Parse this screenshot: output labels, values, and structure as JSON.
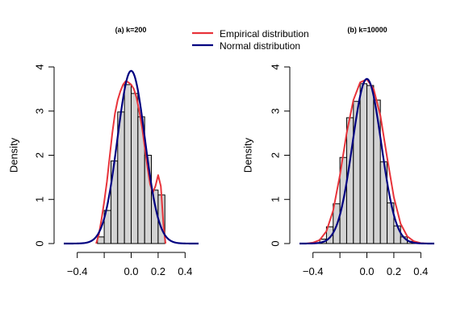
{
  "legend": {
    "items": [
      {
        "label": "Empirical distribution",
        "color": "#e8333a"
      },
      {
        "label": "Normal distribution",
        "color": "#000080"
      }
    ]
  },
  "colors": {
    "bar_fill": "#d3d3d3",
    "bar_stroke": "#000000",
    "empirical": "#e8333a",
    "normal": "#000080"
  },
  "chart_data": [
    {
      "type": "histogram",
      "title": "(a) k=200",
      "xlabel": "",
      "ylabel": "Density",
      "xlim": [
        -0.5,
        0.5
      ],
      "ylim": [
        0,
        4
      ],
      "x_ticks": [
        -0.4,
        -0.2,
        0.0,
        0.2,
        0.4
      ],
      "x_tick_labels": [
        "−0.4",
        "",
        "0.0",
        "0.2",
        "0.4"
      ],
      "y_ticks": [
        0,
        1,
        2,
        3,
        4
      ],
      "y_tick_labels": [
        "0",
        "1",
        "2",
        "3",
        "4"
      ],
      "bins": [
        {
          "x0": -0.25,
          "x1": -0.2,
          "density": 0.15
        },
        {
          "x0": -0.2,
          "x1": -0.15,
          "density": 0.75
        },
        {
          "x0": -0.15,
          "x1": -0.1,
          "density": 1.87
        },
        {
          "x0": -0.1,
          "x1": -0.05,
          "density": 2.98
        },
        {
          "x0": -0.05,
          "x1": 0.0,
          "density": 3.6
        },
        {
          "x0": 0.0,
          "x1": 0.05,
          "density": 3.4
        },
        {
          "x0": 0.05,
          "x1": 0.1,
          "density": 2.87
        },
        {
          "x0": 0.1,
          "x1": 0.15,
          "density": 2.0
        },
        {
          "x0": 0.15,
          "x1": 0.2,
          "density": 1.21
        },
        {
          "x0": 0.2,
          "x1": 0.25,
          "density": 1.1
        }
      ],
      "series": [
        {
          "name": "Empirical distribution",
          "x": [
            -0.26,
            -0.24,
            -0.22,
            -0.2,
            -0.18,
            -0.16,
            -0.14,
            -0.12,
            -0.1,
            -0.08,
            -0.06,
            -0.04,
            -0.02,
            0.0,
            0.02,
            0.04,
            0.06,
            0.08,
            0.1,
            0.12,
            0.14,
            0.16,
            0.18,
            0.2,
            0.22,
            0.24,
            0.255
          ],
          "y": [
            0.0,
            0.2,
            0.55,
            0.95,
            1.4,
            1.95,
            2.5,
            2.95,
            3.25,
            3.45,
            3.6,
            3.68,
            3.65,
            3.6,
            3.5,
            3.3,
            3.0,
            2.65,
            2.2,
            1.75,
            1.35,
            1.15,
            1.3,
            1.55,
            1.3,
            0.4,
            0.0
          ]
        },
        {
          "name": "Normal distribution",
          "mean": 0.0,
          "sd": 0.102,
          "x_range": [
            -0.5,
            0.5
          ]
        }
      ]
    },
    {
      "type": "histogram",
      "title": "(b) k=10000",
      "xlabel": "",
      "ylabel": "Density",
      "xlim": [
        -0.5,
        0.5
      ],
      "ylim": [
        0,
        4
      ],
      "x_ticks": [
        -0.4,
        -0.2,
        0.0,
        0.2,
        0.4
      ],
      "x_tick_labels": [
        "−0.4",
        "",
        "0.0",
        "0.2",
        "0.4"
      ],
      "y_ticks": [
        0,
        1,
        2,
        3,
        4
      ],
      "y_tick_labels": [
        "0",
        "1",
        "2",
        "3",
        "4"
      ],
      "bins": [
        {
          "x0": -0.4,
          "x1": -0.35,
          "density": 0.02
        },
        {
          "x0": -0.35,
          "x1": -0.3,
          "density": 0.1
        },
        {
          "x0": -0.3,
          "x1": -0.25,
          "density": 0.38
        },
        {
          "x0": -0.25,
          "x1": -0.2,
          "density": 0.9
        },
        {
          "x0": -0.2,
          "x1": -0.15,
          "density": 1.95
        },
        {
          "x0": -0.15,
          "x1": -0.1,
          "density": 2.85
        },
        {
          "x0": -0.1,
          "x1": -0.05,
          "density": 3.22
        },
        {
          "x0": -0.05,
          "x1": 0.0,
          "density": 3.62
        },
        {
          "x0": 0.0,
          "x1": 0.05,
          "density": 3.58
        },
        {
          "x0": 0.05,
          "x1": 0.1,
          "density": 3.25
        },
        {
          "x0": 0.1,
          "x1": 0.15,
          "density": 1.85
        },
        {
          "x0": 0.15,
          "x1": 0.2,
          "density": 0.92
        },
        {
          "x0": 0.2,
          "x1": 0.25,
          "density": 0.4
        },
        {
          "x0": 0.25,
          "x1": 0.3,
          "density": 0.15
        },
        {
          "x0": 0.3,
          "x1": 0.35,
          "density": 0.05
        },
        {
          "x0": 0.35,
          "x1": 0.4,
          "density": 0.01
        }
      ],
      "series": [
        {
          "name": "Empirical distribution",
          "x": [
            -0.45,
            -0.4,
            -0.35,
            -0.3,
            -0.25,
            -0.2,
            -0.15,
            -0.1,
            -0.05,
            0.0,
            0.05,
            0.1,
            0.15,
            0.2,
            0.25,
            0.3,
            0.35,
            0.4,
            0.45
          ],
          "y": [
            0.0,
            0.02,
            0.08,
            0.28,
            0.75,
            1.55,
            2.5,
            3.25,
            3.65,
            3.72,
            3.5,
            2.9,
            1.95,
            1.05,
            0.45,
            0.16,
            0.05,
            0.01,
            0.0
          ]
        },
        {
          "name": "Normal distribution",
          "mean": 0.0,
          "sd": 0.107,
          "x_range": [
            -0.5,
            0.5
          ]
        }
      ]
    }
  ]
}
